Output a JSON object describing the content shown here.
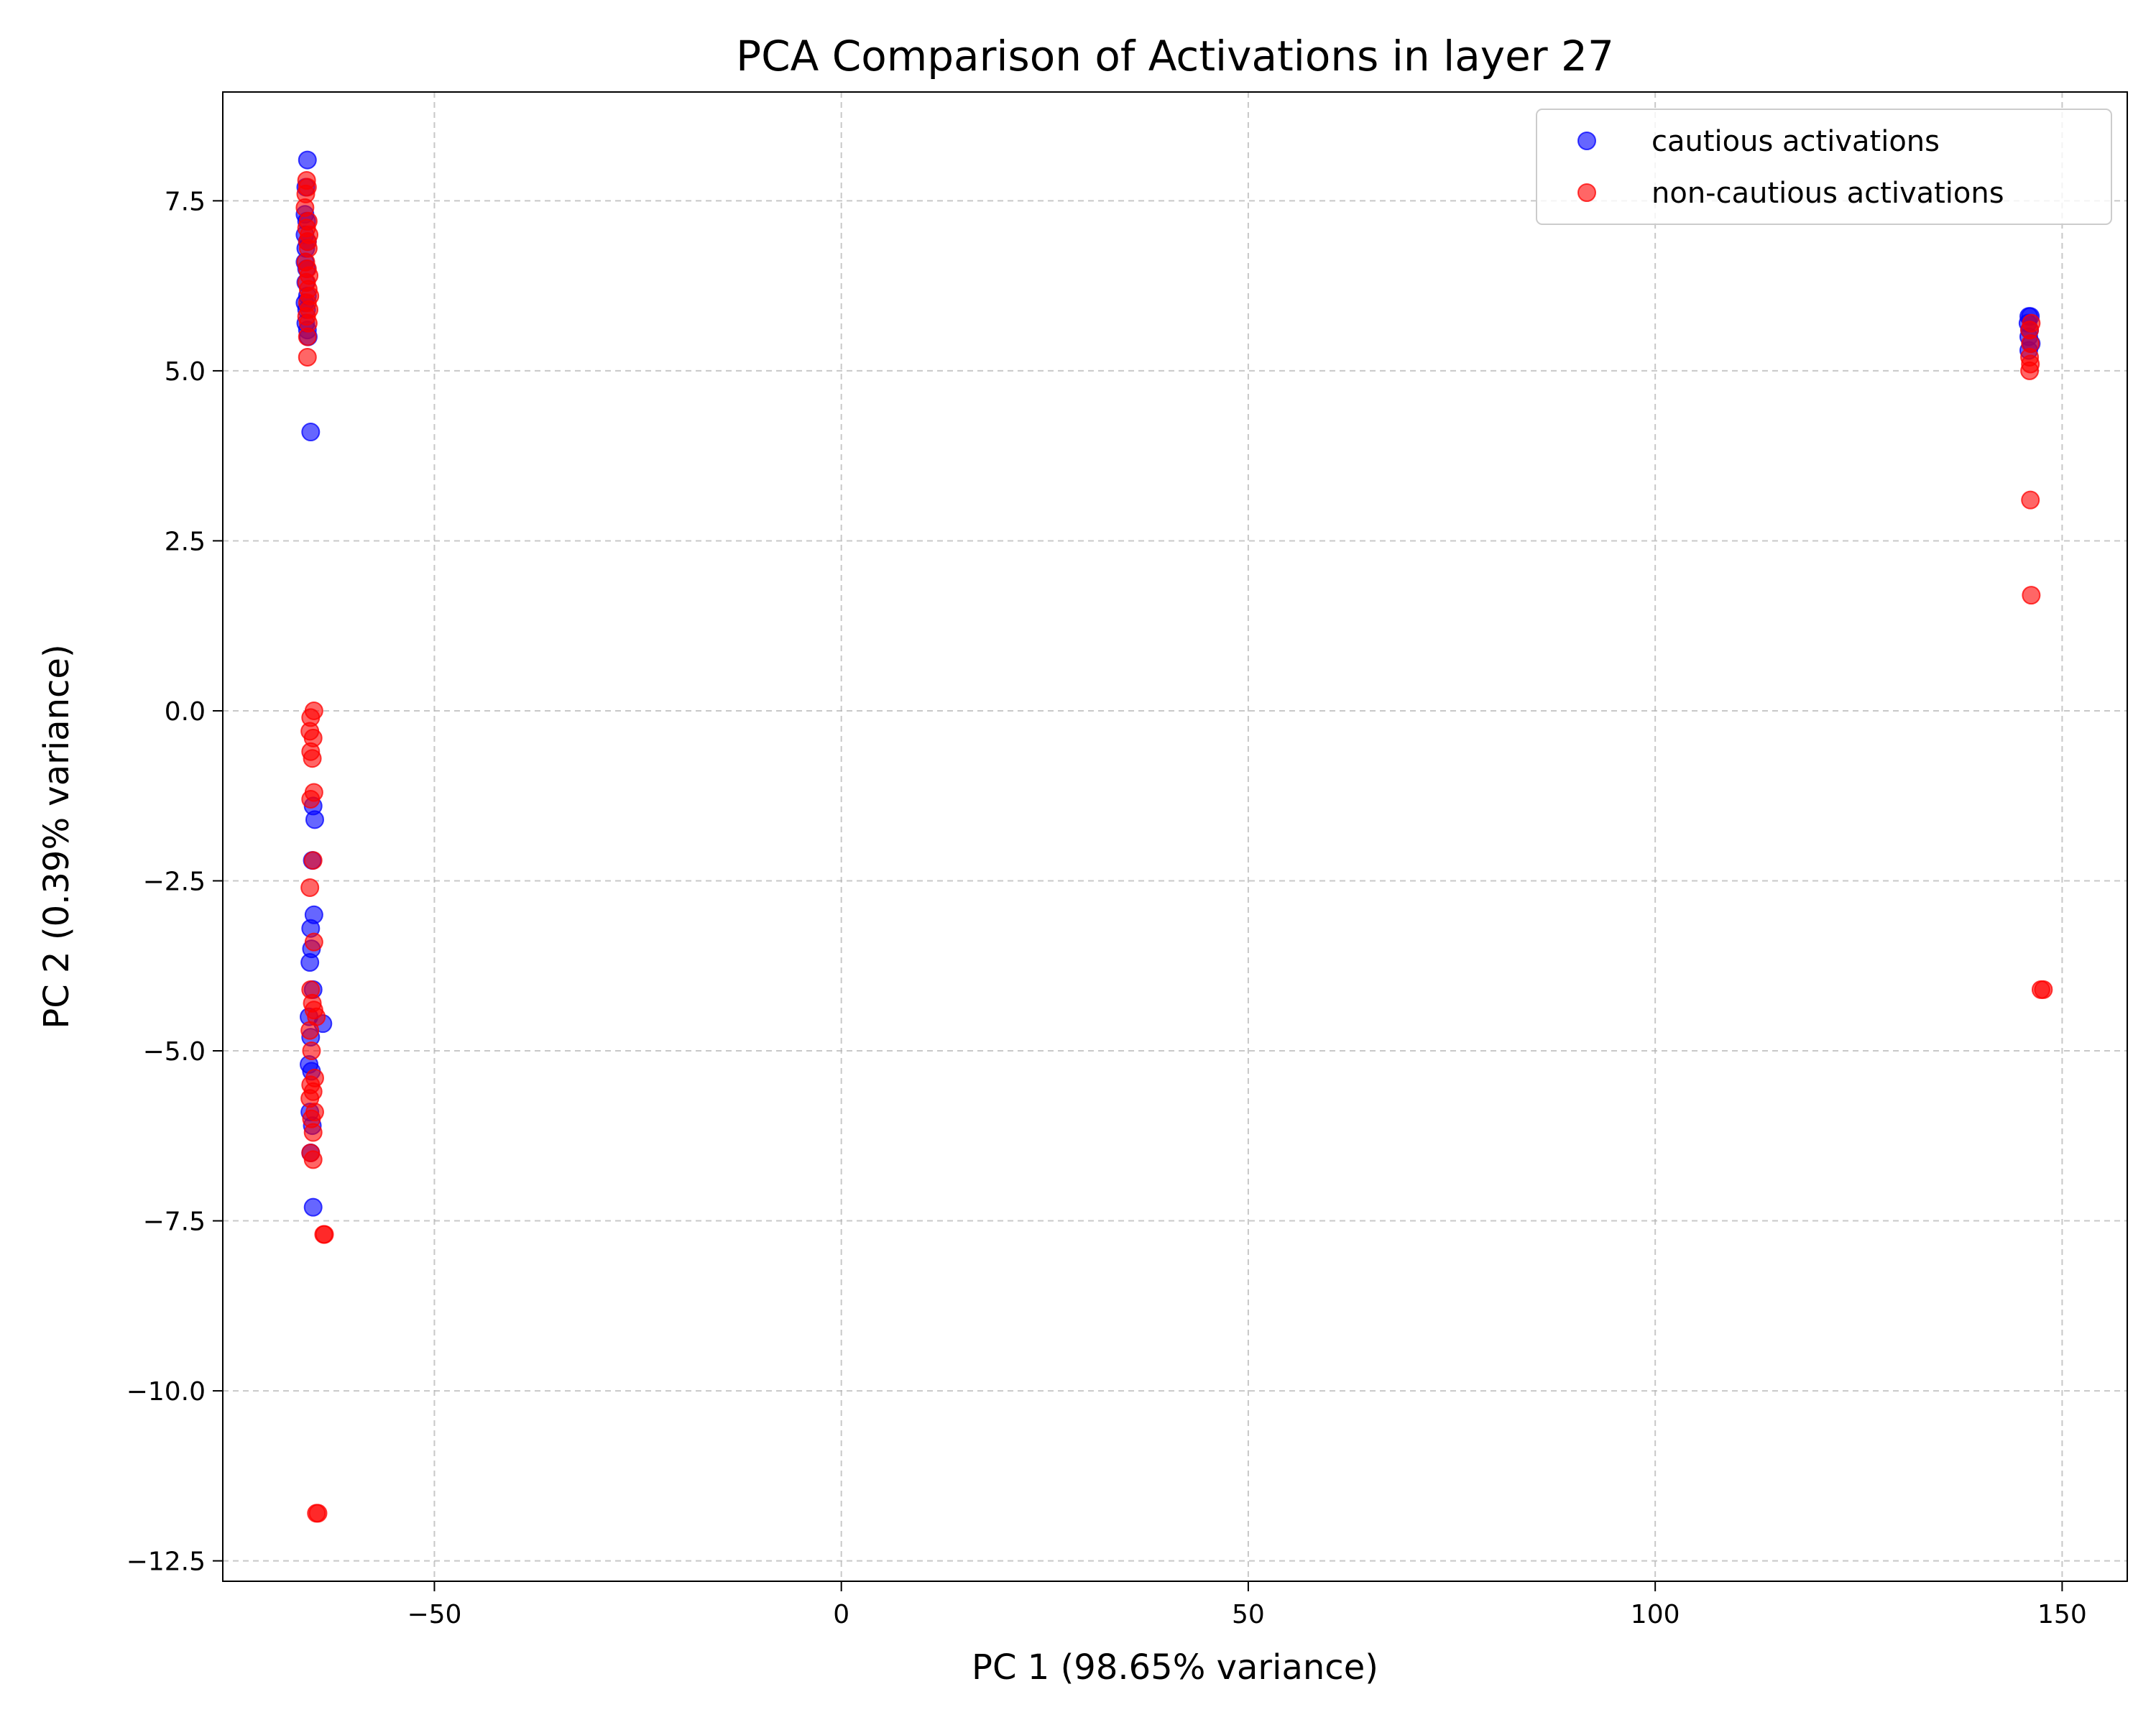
{
  "chart_data": {
    "type": "scatter",
    "title": "PCA Comparison of Activations in layer 27",
    "xlabel": "PC 1 (98.65% variance)",
    "ylabel": "PC 2 (0.39% variance)",
    "xlim": [
      -76,
      158
    ],
    "ylim": [
      -12.8,
      9.1
    ],
    "xticks": [
      -50,
      0,
      50,
      100,
      150
    ],
    "xtick_labels": [
      "−50",
      "0",
      "50",
      "100",
      "150"
    ],
    "yticks": [
      -12.5,
      -10.0,
      -7.5,
      -5.0,
      -2.5,
      0.0,
      2.5,
      5.0,
      7.5
    ],
    "ytick_labels": [
      "−12.5",
      "−10.0",
      "−7.5",
      "−5.0",
      "−2.5",
      "0.0",
      "2.5",
      "5.0",
      "7.5"
    ],
    "grid": true,
    "legend_position": "top-right",
    "series": [
      {
        "name": "cautious activations",
        "color": "#0000ff",
        "points": [
          [
            -65.6,
            8.1
          ],
          [
            -65.8,
            7.7
          ],
          [
            -65.9,
            7.3
          ],
          [
            -65.7,
            7.2
          ],
          [
            -65.9,
            7.0
          ],
          [
            -65.6,
            6.9
          ],
          [
            -65.8,
            6.8
          ],
          [
            -65.9,
            6.6
          ],
          [
            -65.7,
            6.5
          ],
          [
            -65.8,
            6.3
          ],
          [
            -65.6,
            6.1
          ],
          [
            -65.9,
            6.0
          ],
          [
            -65.7,
            5.9
          ],
          [
            -65.8,
            5.7
          ],
          [
            -65.6,
            5.6
          ],
          [
            -65.5,
            5.5
          ],
          [
            -65.2,
            4.1
          ],
          [
            -64.9,
            -1.4
          ],
          [
            -64.7,
            -1.6
          ],
          [
            -65.0,
            -2.2
          ],
          [
            -64.8,
            -3.0
          ],
          [
            -65.2,
            -3.2
          ],
          [
            -65.1,
            -3.5
          ],
          [
            -65.3,
            -3.7
          ],
          [
            -64.9,
            -4.1
          ],
          [
            -63.7,
            -4.6
          ],
          [
            -65.4,
            -4.5
          ],
          [
            -65.2,
            -4.8
          ],
          [
            -65.4,
            -5.2
          ],
          [
            -65.1,
            -5.3
          ],
          [
            -65.3,
            -5.9
          ],
          [
            -65.0,
            -6.1
          ],
          [
            -65.2,
            -6.5
          ],
          [
            -64.9,
            -7.3
          ],
          [
            145.9,
            5.8
          ],
          [
            146.1,
            5.8
          ],
          [
            145.8,
            5.7
          ],
          [
            146.0,
            5.6
          ],
          [
            145.9,
            5.5
          ],
          [
            146.2,
            5.4
          ],
          [
            145.9,
            5.3
          ]
        ]
      },
      {
        "name": "non-cautious activations",
        "color": "#ff0000",
        "points": [
          [
            -65.7,
            7.8
          ],
          [
            -65.6,
            7.7
          ],
          [
            -65.8,
            7.6
          ],
          [
            -65.9,
            7.4
          ],
          [
            -65.5,
            7.2
          ],
          [
            -65.7,
            7.1
          ],
          [
            -65.4,
            7.0
          ],
          [
            -65.6,
            6.9
          ],
          [
            -65.5,
            6.8
          ],
          [
            -65.8,
            6.6
          ],
          [
            -65.6,
            6.5
          ],
          [
            -65.4,
            6.4
          ],
          [
            -65.7,
            6.3
          ],
          [
            -65.5,
            6.2
          ],
          [
            -65.3,
            6.1
          ],
          [
            -65.6,
            6.0
          ],
          [
            -65.4,
            5.9
          ],
          [
            -65.7,
            5.8
          ],
          [
            -65.5,
            5.7
          ],
          [
            -65.6,
            5.5
          ],
          [
            -65.6,
            5.2
          ],
          [
            -64.8,
            0.0
          ],
          [
            -65.2,
            -0.1
          ],
          [
            -65.3,
            -0.3
          ],
          [
            -64.9,
            -0.4
          ],
          [
            -65.2,
            -0.6
          ],
          [
            -65.0,
            -0.7
          ],
          [
            -64.8,
            -1.2
          ],
          [
            -65.2,
            -1.3
          ],
          [
            -64.9,
            -2.2
          ],
          [
            -65.3,
            -2.6
          ],
          [
            -64.8,
            -3.4
          ],
          [
            -65.2,
            -4.1
          ],
          [
            -65.0,
            -4.3
          ],
          [
            -64.8,
            -4.4
          ],
          [
            -64.5,
            -4.5
          ],
          [
            -65.3,
            -4.7
          ],
          [
            -65.1,
            -5.0
          ],
          [
            -64.7,
            -5.4
          ],
          [
            -65.2,
            -5.5
          ],
          [
            -64.9,
            -5.6
          ],
          [
            -65.3,
            -5.7
          ],
          [
            -64.7,
            -5.9
          ],
          [
            -65.1,
            -6.0
          ],
          [
            -64.9,
            -6.2
          ],
          [
            -65.2,
            -6.5
          ],
          [
            -64.9,
            -6.6
          ],
          [
            -63.5,
            -7.7
          ],
          [
            -63.6,
            -7.7
          ],
          [
            -64.5,
            -11.8
          ],
          [
            -64.3,
            -11.8
          ],
          [
            146.2,
            5.7
          ],
          [
            146.0,
            5.6
          ],
          [
            146.1,
            5.4
          ],
          [
            146.0,
            5.2
          ],
          [
            146.1,
            5.1
          ],
          [
            146.0,
            5.0
          ],
          [
            146.1,
            3.1
          ],
          [
            146.2,
            1.7
          ],
          [
            147.4,
            -4.1
          ],
          [
            147.7,
            -4.1
          ]
        ]
      }
    ]
  }
}
